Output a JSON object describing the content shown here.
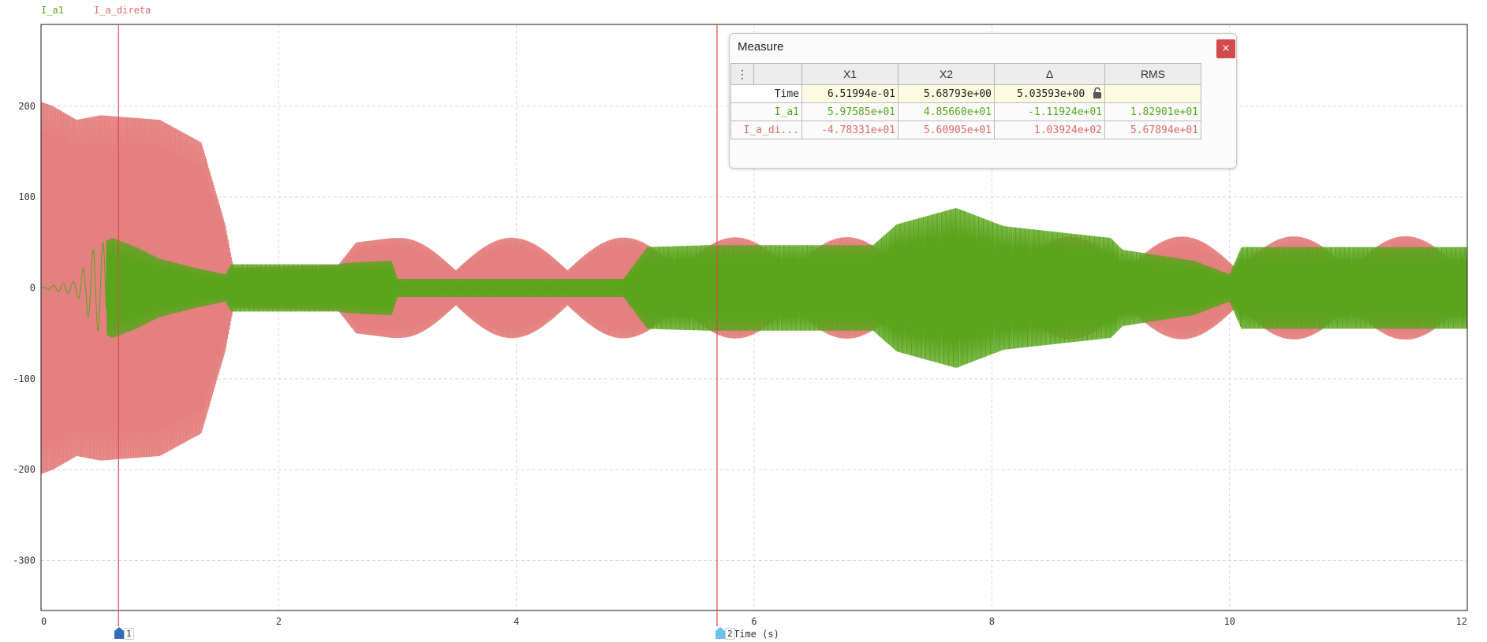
{
  "chart_data": {
    "type": "line",
    "xlabel": "Time (s)",
    "ylabel": "",
    "xlim": [
      0,
      12
    ],
    "ylim": [
      -355,
      290
    ],
    "x_ticks": [
      "0",
      "2",
      "4",
      "6",
      "8",
      "10",
      "12"
    ],
    "y_ticks": [
      "200",
      "100",
      "0",
      "-100",
      "-200",
      "-300"
    ],
    "grid": true,
    "legend_placement": "top-left",
    "series": [
      {
        "name": "I_a1",
        "color": "#5aa51c",
        "envelope": [
          [
            0,
            0
          ],
          [
            0.3,
            8
          ],
          [
            0.45,
            45
          ],
          [
            0.6,
            55
          ],
          [
            0.8,
            45
          ],
          [
            1.0,
            32
          ],
          [
            1.3,
            22
          ],
          [
            1.55,
            15
          ],
          [
            1.6,
            26
          ],
          [
            2.5,
            26
          ],
          [
            2.6,
            28
          ],
          [
            2.95,
            30
          ],
          [
            3.0,
            10
          ],
          [
            4.9,
            10
          ],
          [
            5.1,
            45
          ],
          [
            5.6,
            47
          ],
          [
            7.0,
            47
          ],
          [
            7.2,
            70
          ],
          [
            7.7,
            88
          ],
          [
            8.1,
            68
          ],
          [
            9.0,
            55
          ],
          [
            9.1,
            42
          ],
          [
            9.7,
            30
          ],
          [
            10.0,
            15
          ],
          [
            10.1,
            45
          ],
          [
            12,
            45
          ]
        ]
      },
      {
        "name": "I_a_direta",
        "color": "#e06a6a",
        "envelope": [
          [
            0,
            205
          ],
          [
            0.1,
            200
          ],
          [
            0.3,
            185
          ],
          [
            0.5,
            190
          ],
          [
            1.0,
            185
          ],
          [
            1.35,
            160
          ],
          [
            1.55,
            70
          ],
          [
            1.62,
            22
          ],
          [
            2.5,
            25
          ],
          [
            2.65,
            50
          ],
          [
            2.95,
            55
          ],
          [
            3.0,
            55
          ],
          [
            12,
            57
          ]
        ]
      }
    ]
  },
  "legend": {
    "items": [
      {
        "label": "I_a1",
        "color": "#5aa51c"
      },
      {
        "label": "I_a_direta",
        "color": "#e06a6a"
      }
    ]
  },
  "cursors": {
    "x1": 0.651994,
    "x2": 5.68793,
    "color": "#d24a4a",
    "labels": [
      "1",
      "2"
    ]
  },
  "measure": {
    "title": "Measure",
    "close_label": "×",
    "menu_icon": "⋮",
    "lock_icon": "lock-open-icon",
    "headers": [
      "X1",
      "X2",
      "Δ",
      "RMS"
    ],
    "rows": [
      {
        "label": "Time",
        "x1": "6.51994e-01",
        "x2": "5.68793e+00",
        "delta": "5.03593e+00",
        "rms": ""
      },
      {
        "label": "I_a1",
        "x1": "5.97585e+01",
        "x2": "4.85660e+01",
        "delta": "-1.11924e+01",
        "rms": "1.82901e+01"
      },
      {
        "label": "I_a_di...",
        "x1": "-4.78331e+01",
        "x2": "5.60905e+01",
        "delta": "1.03924e+02",
        "rms": "5.67894e+01"
      }
    ]
  }
}
